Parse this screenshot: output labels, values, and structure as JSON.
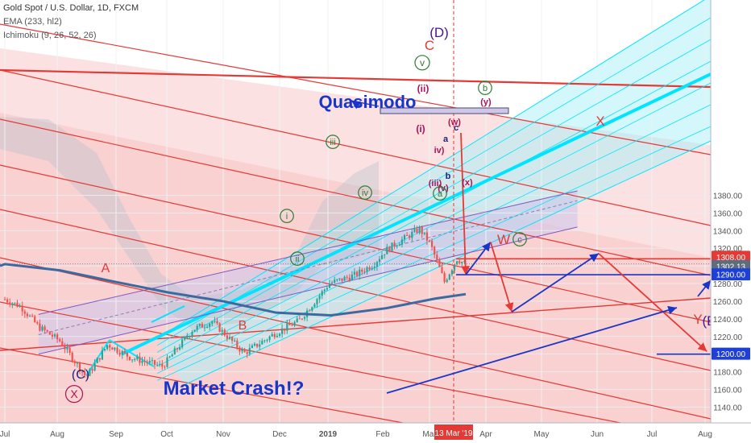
{
  "header": {
    "title": "Gold Spot / U.S. Dollar, 1D, FXCM",
    "indicator_1": "EMA (233, hl2)",
    "indicator_2": "Ichimoku (9, 26, 52, 26)"
  },
  "colors": {
    "candle_up": "#26a69a",
    "candle_down": "#ef5350",
    "ema": "#3b6aa0",
    "cyan_channel": "#00e5ff",
    "red_lines": "#e53935",
    "blue_arrows": "#1a35c9",
    "purple_channel": "#7e57c2",
    "price_label_red": "#e53935",
    "price_label_blue": "#1e40d8",
    "current_price_gray": "#5d6d7e"
  },
  "chart_data": {
    "type": "candlestick",
    "ylim": [
      1125,
      1400
    ],
    "y_ticks": [
      1140,
      1160,
      1180,
      1200,
      1220,
      1240,
      1260,
      1280,
      1300,
      1320,
      1340,
      1360,
      1380
    ],
    "x_labels": [
      "Jul",
      "Aug",
      "Sep",
      "Oct",
      "Nov",
      "Dec",
      "2019",
      "Feb",
      "Mar",
      "Apr",
      "May",
      "Jun",
      "Jul",
      "Aug"
    ],
    "date_marker": "13 Mar '19",
    "price_labels": [
      {
        "value": 1308.0,
        "text": "1308.00",
        "color": "red"
      },
      {
        "value": 1302.13,
        "text": "1302.13",
        "color": "gray"
      },
      {
        "value": 1290.0,
        "text": "1290.00",
        "color": "blue"
      },
      {
        "value": 1200.0,
        "text": "1200.00",
        "color": "blue"
      }
    ],
    "price_path": [
      {
        "date": "2018-07-01",
        "close": 1262
      },
      {
        "date": "2018-07-10",
        "close": 1254
      },
      {
        "date": "2018-07-20",
        "close": 1231
      },
      {
        "date": "2018-08-01",
        "close": 1215
      },
      {
        "date": "2018-08-16",
        "close": 1174
      },
      {
        "date": "2018-08-28",
        "close": 1211
      },
      {
        "date": "2018-09-10",
        "close": 1196
      },
      {
        "date": "2018-09-28",
        "close": 1186
      },
      {
        "date": "2018-10-15",
        "close": 1228
      },
      {
        "date": "2018-10-26",
        "close": 1237
      },
      {
        "date": "2018-11-13",
        "close": 1201
      },
      {
        "date": "2018-11-30",
        "close": 1223
      },
      {
        "date": "2018-12-14",
        "close": 1238
      },
      {
        "date": "2018-12-31",
        "close": 1280
      },
      {
        "date": "2019-01-15",
        "close": 1290
      },
      {
        "date": "2019-01-25",
        "close": 1302
      },
      {
        "date": "2019-02-01",
        "close": 1318
      },
      {
        "date": "2019-02-20",
        "close": 1342
      },
      {
        "date": "2019-02-26",
        "close": 1325
      },
      {
        "date": "2019-03-06",
        "close": 1282
      },
      {
        "date": "2019-03-13",
        "close": 1308
      },
      {
        "date": "2019-03-18",
        "close": 1302
      }
    ],
    "ema_233": [
      {
        "date": "2018-07-01",
        "value": 1302
      },
      {
        "date": "2018-08-01",
        "value": 1295
      },
      {
        "date": "2018-09-01",
        "value": 1282
      },
      {
        "date": "2018-10-01",
        "value": 1270
      },
      {
        "date": "2018-11-01",
        "value": 1260
      },
      {
        "date": "2018-12-01",
        "value": 1247
      },
      {
        "date": "2019-01-01",
        "value": 1244
      },
      {
        "date": "2019-02-01",
        "value": 1252
      },
      {
        "date": "2019-03-01",
        "value": 1263
      },
      {
        "date": "2019-03-18",
        "value": 1268
      }
    ],
    "projection_path": [
      {
        "date": "2019-03-18",
        "value": 1290
      },
      {
        "date": "2019-04-01",
        "value": 1327
      },
      {
        "date": "2019-04-13",
        "value": 1248
      },
      {
        "date": "2019-06-01",
        "value": 1314
      },
      {
        "date": "2019-08-01",
        "value": 1203
      }
    ],
    "annotations": [
      {
        "text": "Quasimodo"
      },
      {
        "text": "Market Crash!?"
      },
      {
        "text": "(D)"
      },
      {
        "text": "C"
      },
      {
        "text": "v"
      },
      {
        "text": "(ii)"
      },
      {
        "text": "(i)"
      },
      {
        "text": "(w)"
      },
      {
        "text": "c"
      },
      {
        "text": "a"
      },
      {
        "text": "iv)"
      },
      {
        "text": "b"
      },
      {
        "text": "(iii)"
      },
      {
        "text": "(v)"
      },
      {
        "text": "a"
      },
      {
        "text": "(x)"
      },
      {
        "text": "b"
      },
      {
        "text": "(y)"
      },
      {
        "text": "X"
      },
      {
        "text": "W"
      },
      {
        "text": "c"
      },
      {
        "text": "Y"
      },
      {
        "text": "(E"
      },
      {
        "text": "iii"
      },
      {
        "text": "iv"
      },
      {
        "text": "i"
      },
      {
        "text": "ii"
      },
      {
        "text": "A"
      },
      {
        "text": "B"
      },
      {
        "text": "(C)"
      },
      {
        "text": "X"
      }
    ]
  }
}
